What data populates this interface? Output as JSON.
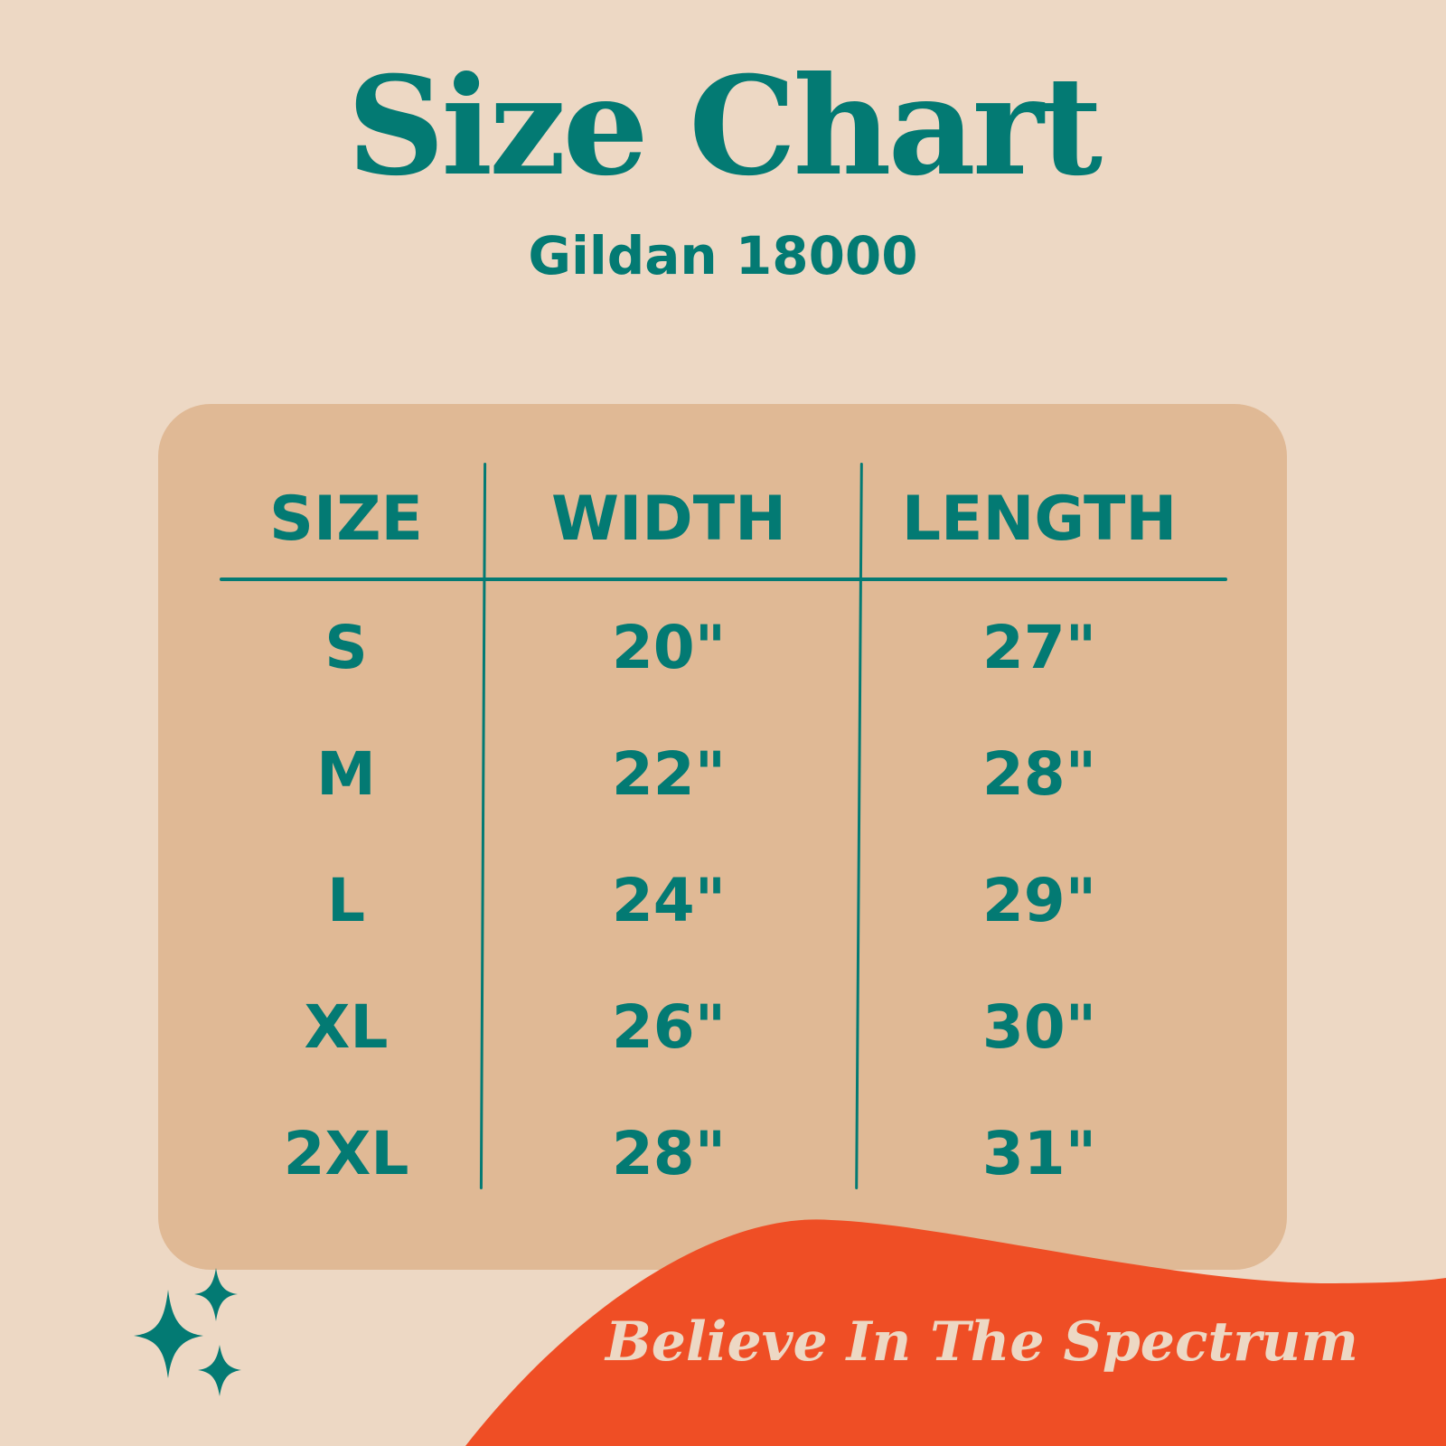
{
  "title": "Size Chart",
  "subtitle": "Gildan 18000",
  "table": {
    "headers": [
      "SIZE",
      "WIDTH",
      "LENGTH"
    ],
    "rows": [
      {
        "size": "S",
        "width": "20\"",
        "length": "27\""
      },
      {
        "size": "M",
        "width": "22\"",
        "length": "28\""
      },
      {
        "size": "L",
        "width": "24\"",
        "length": "29\""
      },
      {
        "size": "XL",
        "width": "26\"",
        "length": "30\""
      },
      {
        "size": "2XL",
        "width": "28\"",
        "length": "31\""
      }
    ]
  },
  "tagline": "Believe In The Spectrum",
  "colors": {
    "background": "#EDD8C4",
    "card": "#E0B995",
    "text": "#037A73",
    "accent": "#EF4E25"
  },
  "icons": [
    "sparkle-stars-icon"
  ]
}
